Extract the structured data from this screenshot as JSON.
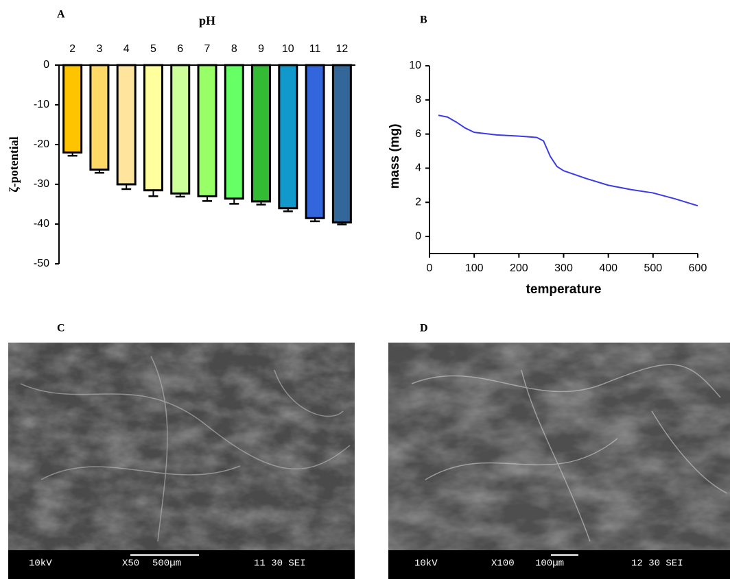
{
  "panels": [
    "A",
    "B",
    "C",
    "D"
  ],
  "chart_data": [
    {
      "type": "bar",
      "xlabel": "pH",
      "ylabel": "ζ-potential",
      "categories": [
        "2",
        "3",
        "4",
        "5",
        "6",
        "7",
        "8",
        "9",
        "10",
        "11",
        "12"
      ],
      "values": [
        -22,
        -26.3,
        -30,
        -31.5,
        -32.3,
        -33,
        -33.6,
        -34.3,
        -36,
        -38.5,
        -39.6
      ],
      "errors": [
        0.8,
        0.8,
        1.2,
        1.5,
        0.8,
        1.2,
        1.3,
        0.8,
        0.8,
        0.8,
        0.5
      ],
      "colors": [
        "#ffc400",
        "#ffd966",
        "#ffe49e",
        "#ffff9e",
        "#ccff99",
        "#99ff66",
        "#66ff66",
        "#33bb33",
        "#1199cc",
        "#3366dd",
        "#336699"
      ],
      "ylim": [
        -50,
        0
      ],
      "yticks": [
        0,
        -10,
        -20,
        -30,
        -40,
        -50
      ]
    },
    {
      "type": "line",
      "xlabel": "temperature",
      "ylabel": "mass (mg)",
      "color": "#3a3ae8",
      "x": [
        20,
        40,
        60,
        80,
        100,
        150,
        200,
        240,
        255,
        270,
        285,
        300,
        350,
        400,
        450,
        500,
        550,
        600
      ],
      "values": [
        7.1,
        7.0,
        6.7,
        6.35,
        6.1,
        5.95,
        5.88,
        5.8,
        5.6,
        4.7,
        4.1,
        3.85,
        3.4,
        3.0,
        2.75,
        2.55,
        2.2,
        1.8
      ],
      "xlim": [
        0,
        600
      ],
      "xticks": [
        0,
        100,
        200,
        300,
        400,
        500,
        600
      ],
      "ylim": [
        -1,
        10
      ],
      "yticks": [
        0,
        2,
        4,
        6,
        8,
        10
      ]
    }
  ],
  "sem": [
    {
      "voltage": "10kV",
      "magnification": "X50",
      "scale": "500µm",
      "info": "11 30 SEI"
    },
    {
      "voltage": "10kV",
      "magnification": "X100",
      "scale": "100µm",
      "info": "12 30 SEI"
    }
  ]
}
